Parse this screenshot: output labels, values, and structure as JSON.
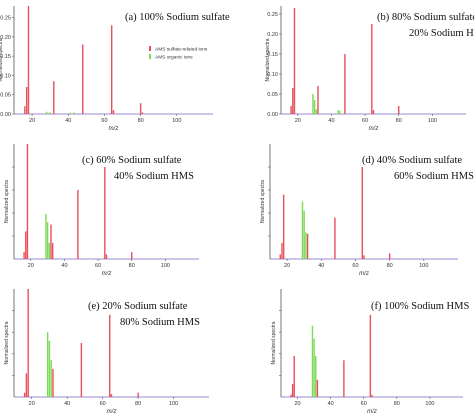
{
  "colors": {
    "sulfate": "#e8505b",
    "organic": "#7ed957",
    "axis": "#555555",
    "bottom_axis": "#7a63c9"
  },
  "legend": {
    "sulfate_label": "AMS sulfate-related ions",
    "organic_label": "AMS organic ions",
    "placement": "top-right of panel (a)"
  },
  "chart_data": [
    {
      "type": "bar",
      "panel": "(a)",
      "label_line1": "(a)   100% Sodium sulfate",
      "label_line2": "",
      "xlabel": "m/z",
      "ylabel": "Normalized spectra",
      "xlim": [
        10,
        120
      ],
      "ylim": [
        0,
        0.28
      ],
      "xticks": [
        20,
        40,
        60,
        80,
        100
      ],
      "yticks": [
        "0.00",
        "0.05",
        "0.10",
        "0.15",
        "0.20",
        "0.25"
      ],
      "series": [
        {
          "name": "AMS sulfate-related ions",
          "points": [
            [
              16,
              0.02
            ],
            [
              17,
              0.07
            ],
            [
              18,
              0.28
            ],
            [
              32,
              0.085
            ],
            [
              48,
              0.18
            ],
            [
              64,
              0.23
            ],
            [
              65,
              0.01
            ],
            [
              80,
              0.028
            ],
            [
              81,
              0.004
            ]
          ]
        },
        {
          "name": "AMS organic ions",
          "points": [
            [
              28,
              0.006
            ],
            [
              29,
              0.003
            ],
            [
              30,
              0.004
            ],
            [
              41,
              0.003
            ],
            [
              43,
              0.004
            ]
          ]
        }
      ]
    },
    {
      "type": "bar",
      "panel": "(b)",
      "label_line1": "(b)   80% Sodium sulfate",
      "label_line2": "20% Sodium HMS",
      "xlabel": "m/z",
      "ylabel": "Normalized spectra",
      "xlim": [
        10,
        120
      ],
      "ylim": [
        0,
        0.27
      ],
      "xticks": [
        20,
        40,
        60,
        80,
        100
      ],
      "yticks": [
        "0.00",
        "0.05",
        "0.10",
        "0.15",
        "0.20",
        "0.25"
      ],
      "series": [
        {
          "name": "AMS sulfate-related ions",
          "points": [
            [
              16,
              0.02
            ],
            [
              17,
              0.065
            ],
            [
              18,
              0.265
            ],
            [
              32,
              0.07
            ],
            [
              48,
              0.15
            ],
            [
              64,
              0.225
            ],
            [
              65,
              0.01
            ],
            [
              80,
              0.02
            ]
          ]
        },
        {
          "name": "AMS organic ions",
          "points": [
            [
              29,
              0.05
            ],
            [
              30,
              0.035
            ],
            [
              31,
              0.012
            ],
            [
              44,
              0.01
            ],
            [
              45,
              0.008
            ]
          ]
        }
      ]
    },
    {
      "type": "bar",
      "panel": "(c)",
      "label_line1": "(c)   60% Sodium sulfate",
      "label_line2": "40% Sodium HMS",
      "xlabel": "m/z",
      "ylabel": "Normalized spectra",
      "xlim": [
        10,
        120
      ],
      "ylim": [
        0,
        0.25
      ],
      "xticks": [
        20,
        40,
        60,
        80,
        100
      ],
      "yticks": [],
      "series": [
        {
          "name": "AMS sulfate-related ions",
          "points": [
            [
              16,
              0.015
            ],
            [
              17,
              0.06
            ],
            [
              18,
              0.25
            ],
            [
              32,
              0.075
            ],
            [
              33,
              0.035
            ],
            [
              48,
              0.15
            ],
            [
              64,
              0.2
            ],
            [
              65,
              0.01
            ],
            [
              80,
              0.015
            ]
          ]
        },
        {
          "name": "AMS organic ions",
          "points": [
            [
              29,
              0.098
            ],
            [
              30,
              0.08
            ],
            [
              31,
              0.035
            ]
          ]
        }
      ]
    },
    {
      "type": "bar",
      "panel": "(d)",
      "label_line1": "(d)   40% Sodium sulfate",
      "label_line2": "60% Sodium HMS",
      "xlabel": "m/z",
      "ylabel": "Normalized spectra",
      "xlim": [
        10,
        120
      ],
      "ylim": [
        0,
        0.25
      ],
      "xticks": [
        20,
        40,
        60,
        80,
        100
      ],
      "yticks": [],
      "series": [
        {
          "name": "AMS sulfate-related ions",
          "points": [
            [
              16,
              0.01
            ],
            [
              17,
              0.035
            ],
            [
              18,
              0.14
            ],
            [
              32,
              0.055
            ],
            [
              48,
              0.09
            ],
            [
              64,
              0.2
            ],
            [
              65,
              0.008
            ],
            [
              80,
              0.012
            ]
          ]
        },
        {
          "name": "AMS organic ions",
          "points": [
            [
              29,
              0.125
            ],
            [
              30,
              0.105
            ],
            [
              31,
              0.058
            ]
          ]
        }
      ]
    },
    {
      "type": "bar",
      "panel": "(e)",
      "label_line1": "(e)   20% Sodium sulfate",
      "label_line2": "80% Sodium HMS",
      "xlabel": "m/z",
      "ylabel": "Normalized spectra",
      "xlim": [
        10,
        120
      ],
      "ylim": [
        0,
        0.25
      ],
      "xticks": [
        20,
        40,
        60,
        80,
        100
      ],
      "yticks": [],
      "series": [
        {
          "name": "AMS sulfate-related ions",
          "points": [
            [
              16,
              0.01
            ],
            [
              17,
              0.055
            ],
            [
              18,
              0.25
            ],
            [
              32,
              0.065
            ],
            [
              48,
              0.125
            ],
            [
              64,
              0.19
            ],
            [
              65,
              0.007
            ],
            [
              80,
              0.01
            ]
          ]
        },
        {
          "name": "AMS organic ions",
          "points": [
            [
              29,
              0.15
            ],
            [
              30,
              0.13
            ],
            [
              31,
              0.085
            ]
          ]
        }
      ]
    },
    {
      "type": "bar",
      "panel": "(f)",
      "label_line1": "(f)   100% Sodium HMS",
      "label_line2": "",
      "xlabel": "m/z",
      "ylabel": "Normalized spectra",
      "xlim": [
        10,
        120
      ],
      "ylim": [
        0,
        0.25
      ],
      "xticks": [
        20,
        40,
        60,
        80,
        100
      ],
      "yticks": [],
      "series": [
        {
          "name": "AMS sulfate-related ions",
          "points": [
            [
              16,
              0.005
            ],
            [
              17,
              0.03
            ],
            [
              18,
              0.095
            ],
            [
              32,
              0.04
            ],
            [
              48,
              0.085
            ],
            [
              64,
              0.19
            ],
            [
              65,
              0.005
            ]
          ]
        },
        {
          "name": "AMS organic ions",
          "points": [
            [
              29,
              0.165
            ],
            [
              30,
              0.135
            ],
            [
              31,
              0.095
            ]
          ]
        }
      ]
    }
  ]
}
